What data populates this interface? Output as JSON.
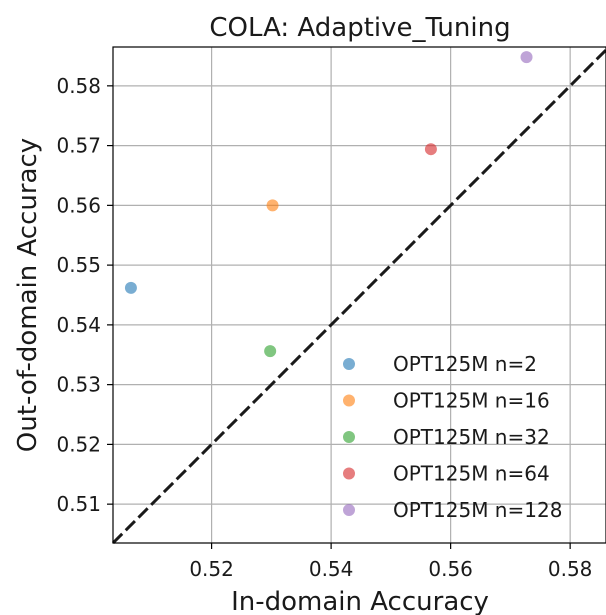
{
  "chart_data": {
    "type": "scatter",
    "title": "COLA: Adaptive_Tuning",
    "xlabel": "In-domain Accuracy",
    "ylabel": "Out-of-domain Accuracy",
    "xlim": [
      0.5035,
      0.586
    ],
    "ylim": [
      0.5035,
      0.5865
    ],
    "xticks": [
      "0.52",
      "0.54",
      "0.56",
      "0.58"
    ],
    "yticks": [
      "0.51",
      "0.52",
      "0.53",
      "0.54",
      "0.55",
      "0.56",
      "0.57",
      "0.58"
    ],
    "grid": true,
    "legend_position": "lower right",
    "reference_line": "y = x (black dashed)",
    "series": [
      {
        "name": "OPT125M n=2",
        "color": "#1f77b4",
        "points": [
          [
            0.5065,
            0.5462
          ]
        ]
      },
      {
        "name": "OPT125M n=16",
        "color": "#ff7f0e",
        "points": [
          [
            0.5302,
            0.56
          ]
        ]
      },
      {
        "name": "OPT125M n=32",
        "color": "#2ca02c",
        "points": [
          [
            0.5298,
            0.5356
          ]
        ]
      },
      {
        "name": "OPT125M n=64",
        "color": "#d62728",
        "points": [
          [
            0.5567,
            0.5694
          ]
        ]
      },
      {
        "name": "OPT125M n=128",
        "color": "#9467bd",
        "points": [
          [
            0.5727,
            0.5848
          ]
        ]
      }
    ]
  }
}
